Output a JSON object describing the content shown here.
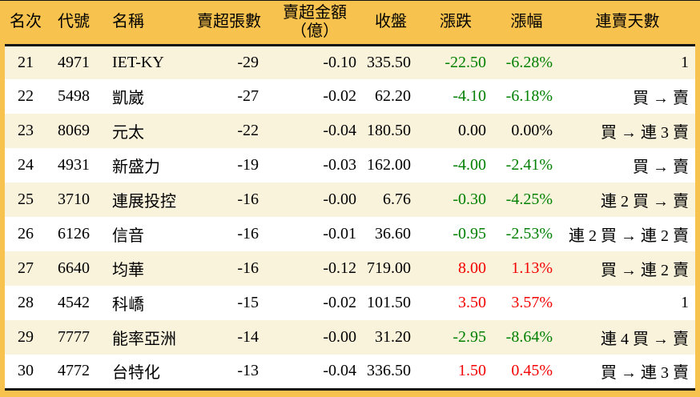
{
  "theme": {
    "header_bg": "#F8C24E",
    "stripe_bg": "#FAF3DC",
    "row_bg": "#FFFFFF",
    "border_color": "#131313",
    "text_color": "#000000",
    "up_color": "#F40000",
    "down_color": "#008000"
  },
  "chart_data": {
    "type": "table",
    "title": "",
    "legend": "",
    "columns": [
      {
        "key": "rank",
        "label": "名次"
      },
      {
        "key": "code",
        "label": "代號"
      },
      {
        "key": "name",
        "label": "名稱"
      },
      {
        "key": "volume",
        "label": "賣超張數"
      },
      {
        "key": "amount",
        "label": "賣超金額\n（億）"
      },
      {
        "key": "close",
        "label": "收盤"
      },
      {
        "key": "change",
        "label": "漲跌"
      },
      {
        "key": "change_pct",
        "label": "漲幅"
      },
      {
        "key": "streak",
        "label": "連賣天數"
      }
    ],
    "rows": [
      {
        "rank": "21",
        "code": "4971",
        "name": "IET-KY",
        "volume": "-29",
        "amount": "-0.10",
        "close": "335.50",
        "change": "-22.50",
        "change_pct": "-6.28%",
        "streak": "1",
        "trend": "down"
      },
      {
        "rank": "22",
        "code": "5498",
        "name": "凱崴",
        "volume": "-27",
        "amount": "-0.02",
        "close": "62.20",
        "change": "-4.10",
        "change_pct": "-6.18%",
        "streak": "買 → 賣",
        "trend": "down"
      },
      {
        "rank": "23",
        "code": "8069",
        "name": "元太",
        "volume": "-22",
        "amount": "-0.04",
        "close": "180.50",
        "change": "0.00",
        "change_pct": "0.00%",
        "streak": "買 → 連 3 賣",
        "trend": "flat"
      },
      {
        "rank": "24",
        "code": "4931",
        "name": "新盛力",
        "volume": "-19",
        "amount": "-0.03",
        "close": "162.00",
        "change": "-4.00",
        "change_pct": "-2.41%",
        "streak": "買 → 賣",
        "trend": "down"
      },
      {
        "rank": "25",
        "code": "3710",
        "name": "連展投控",
        "volume": "-16",
        "amount": "-0.00",
        "close": "6.76",
        "change": "-0.30",
        "change_pct": "-4.25%",
        "streak": "連 2 買 → 賣",
        "trend": "down"
      },
      {
        "rank": "26",
        "code": "6126",
        "name": "信音",
        "volume": "-16",
        "amount": "-0.01",
        "close": "36.60",
        "change": "-0.95",
        "change_pct": "-2.53%",
        "streak": "連 2 買 → 連 2 賣",
        "trend": "down"
      },
      {
        "rank": "27",
        "code": "6640",
        "name": "均華",
        "volume": "-16",
        "amount": "-0.12",
        "close": "719.00",
        "change": "8.00",
        "change_pct": "1.13%",
        "streak": "買 → 連 2 賣",
        "trend": "up"
      },
      {
        "rank": "28",
        "code": "4542",
        "name": "科嶠",
        "volume": "-15",
        "amount": "-0.02",
        "close": "101.50",
        "change": "3.50",
        "change_pct": "3.57%",
        "streak": "1",
        "trend": "up"
      },
      {
        "rank": "29",
        "code": "7777",
        "name": "能率亞洲",
        "volume": "-14",
        "amount": "-0.00",
        "close": "31.20",
        "change": "-2.95",
        "change_pct": "-8.64%",
        "streak": "連 4 買 → 賣",
        "trend": "down"
      },
      {
        "rank": "30",
        "code": "4772",
        "name": "台特化",
        "volume": "-13",
        "amount": "-0.04",
        "close": "336.50",
        "change": "1.50",
        "change_pct": "0.45%",
        "streak": "買 → 連 3 賣",
        "trend": "up"
      }
    ]
  }
}
